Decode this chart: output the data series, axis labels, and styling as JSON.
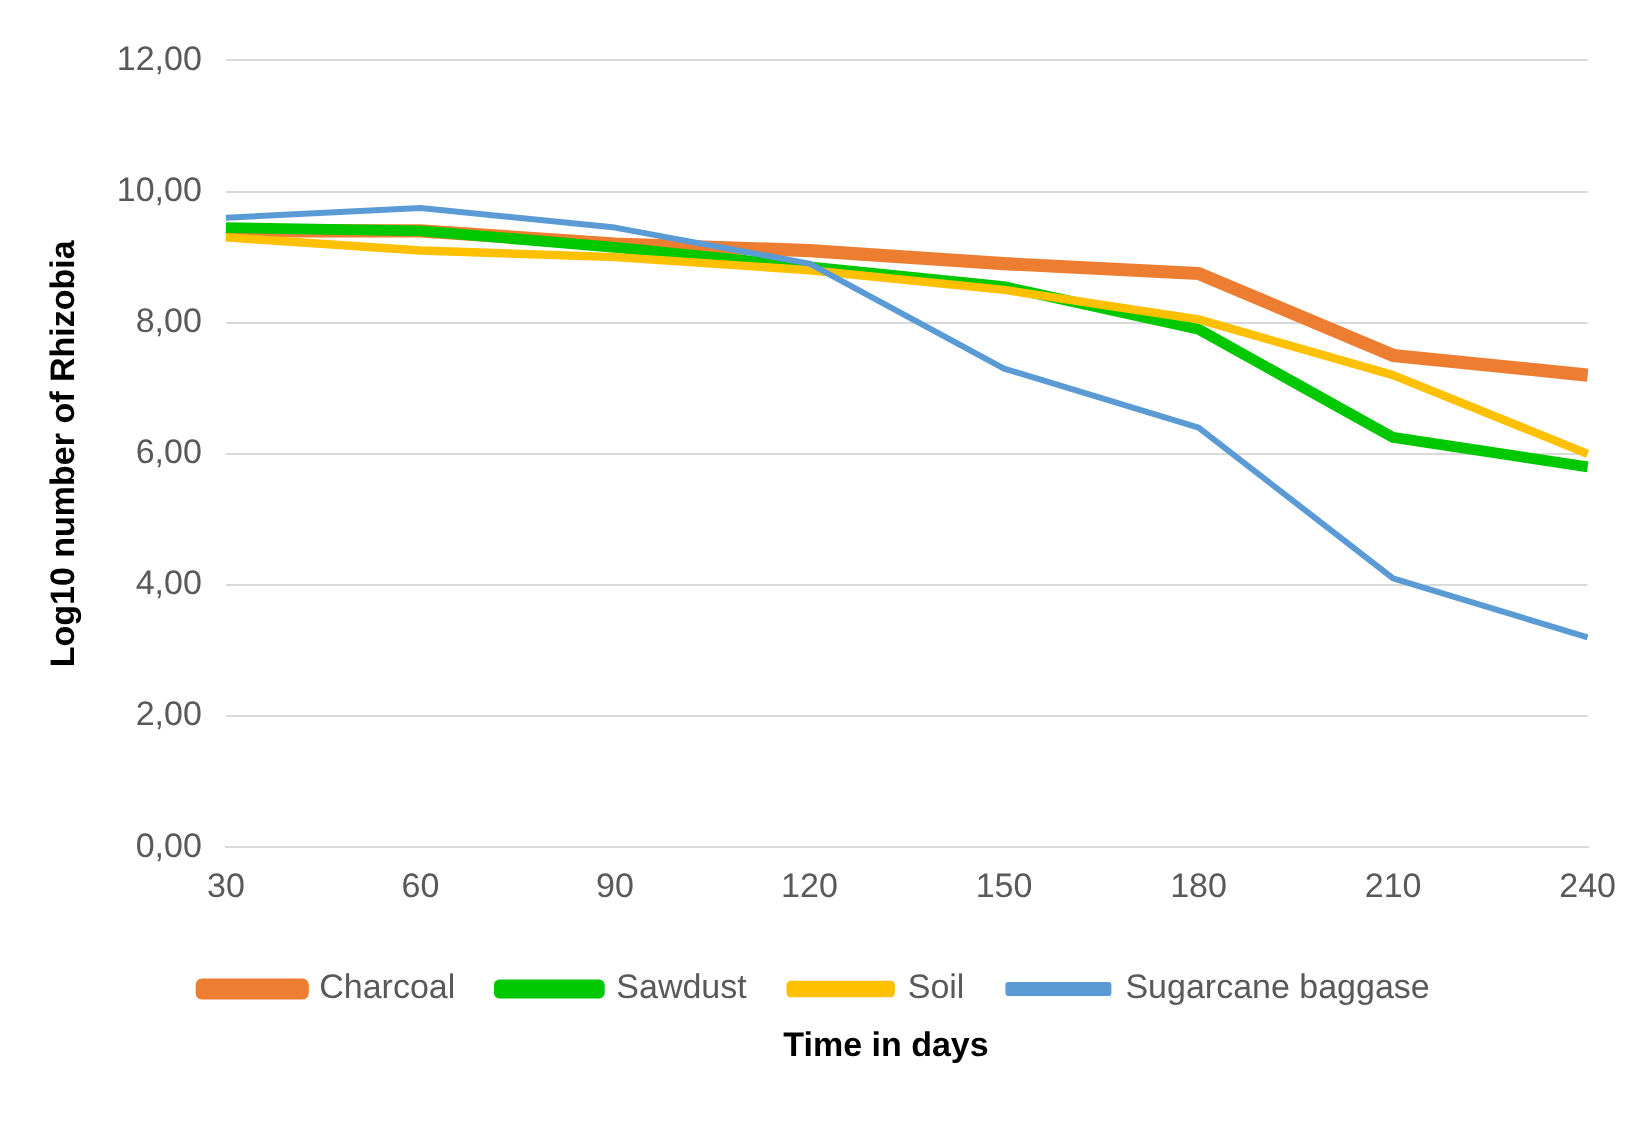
{
  "chart_data": {
    "type": "line",
    "xlabel": "Time in days",
    "ylabel": "Log10 number of Rhizobia",
    "categories": [
      "30",
      "60",
      "90",
      "120",
      "150",
      "180",
      "210",
      "240"
    ],
    "series": [
      {
        "name": "Charcoal",
        "color": "#ed7d31",
        "values": [
          9.4,
          9.4,
          9.2,
          9.1,
          8.9,
          8.75,
          7.5,
          7.2
        ]
      },
      {
        "name": "Sawdust",
        "color": "#00c800",
        "values": [
          9.45,
          9.4,
          9.15,
          8.85,
          8.55,
          7.9,
          6.25,
          5.8
        ]
      },
      {
        "name": "Soil",
        "color": "#ffc000",
        "values": [
          9.3,
          9.1,
          9.0,
          8.8,
          8.5,
          8.05,
          7.2,
          6.0
        ]
      },
      {
        "name": "Sugarcane baggase",
        "color": "#5b9bd5",
        "values": [
          9.6,
          9.75,
          9.45,
          8.9,
          7.3,
          6.4,
          4.1,
          3.2
        ]
      }
    ],
    "ylim": [
      0,
      12
    ],
    "yticks": [
      {
        "value": 0,
        "label": "0,00"
      },
      {
        "value": 2,
        "label": "2,00"
      },
      {
        "value": 4,
        "label": "4,00"
      },
      {
        "value": 6,
        "label": "6,00"
      },
      {
        "value": 8,
        "label": "8,00"
      },
      {
        "value": 10,
        "label": "10,00"
      },
      {
        "value": 12,
        "label": "12,00"
      }
    ],
    "grid": "y",
    "legend": "bottom",
    "marker": "none",
    "line_style": "solid"
  }
}
